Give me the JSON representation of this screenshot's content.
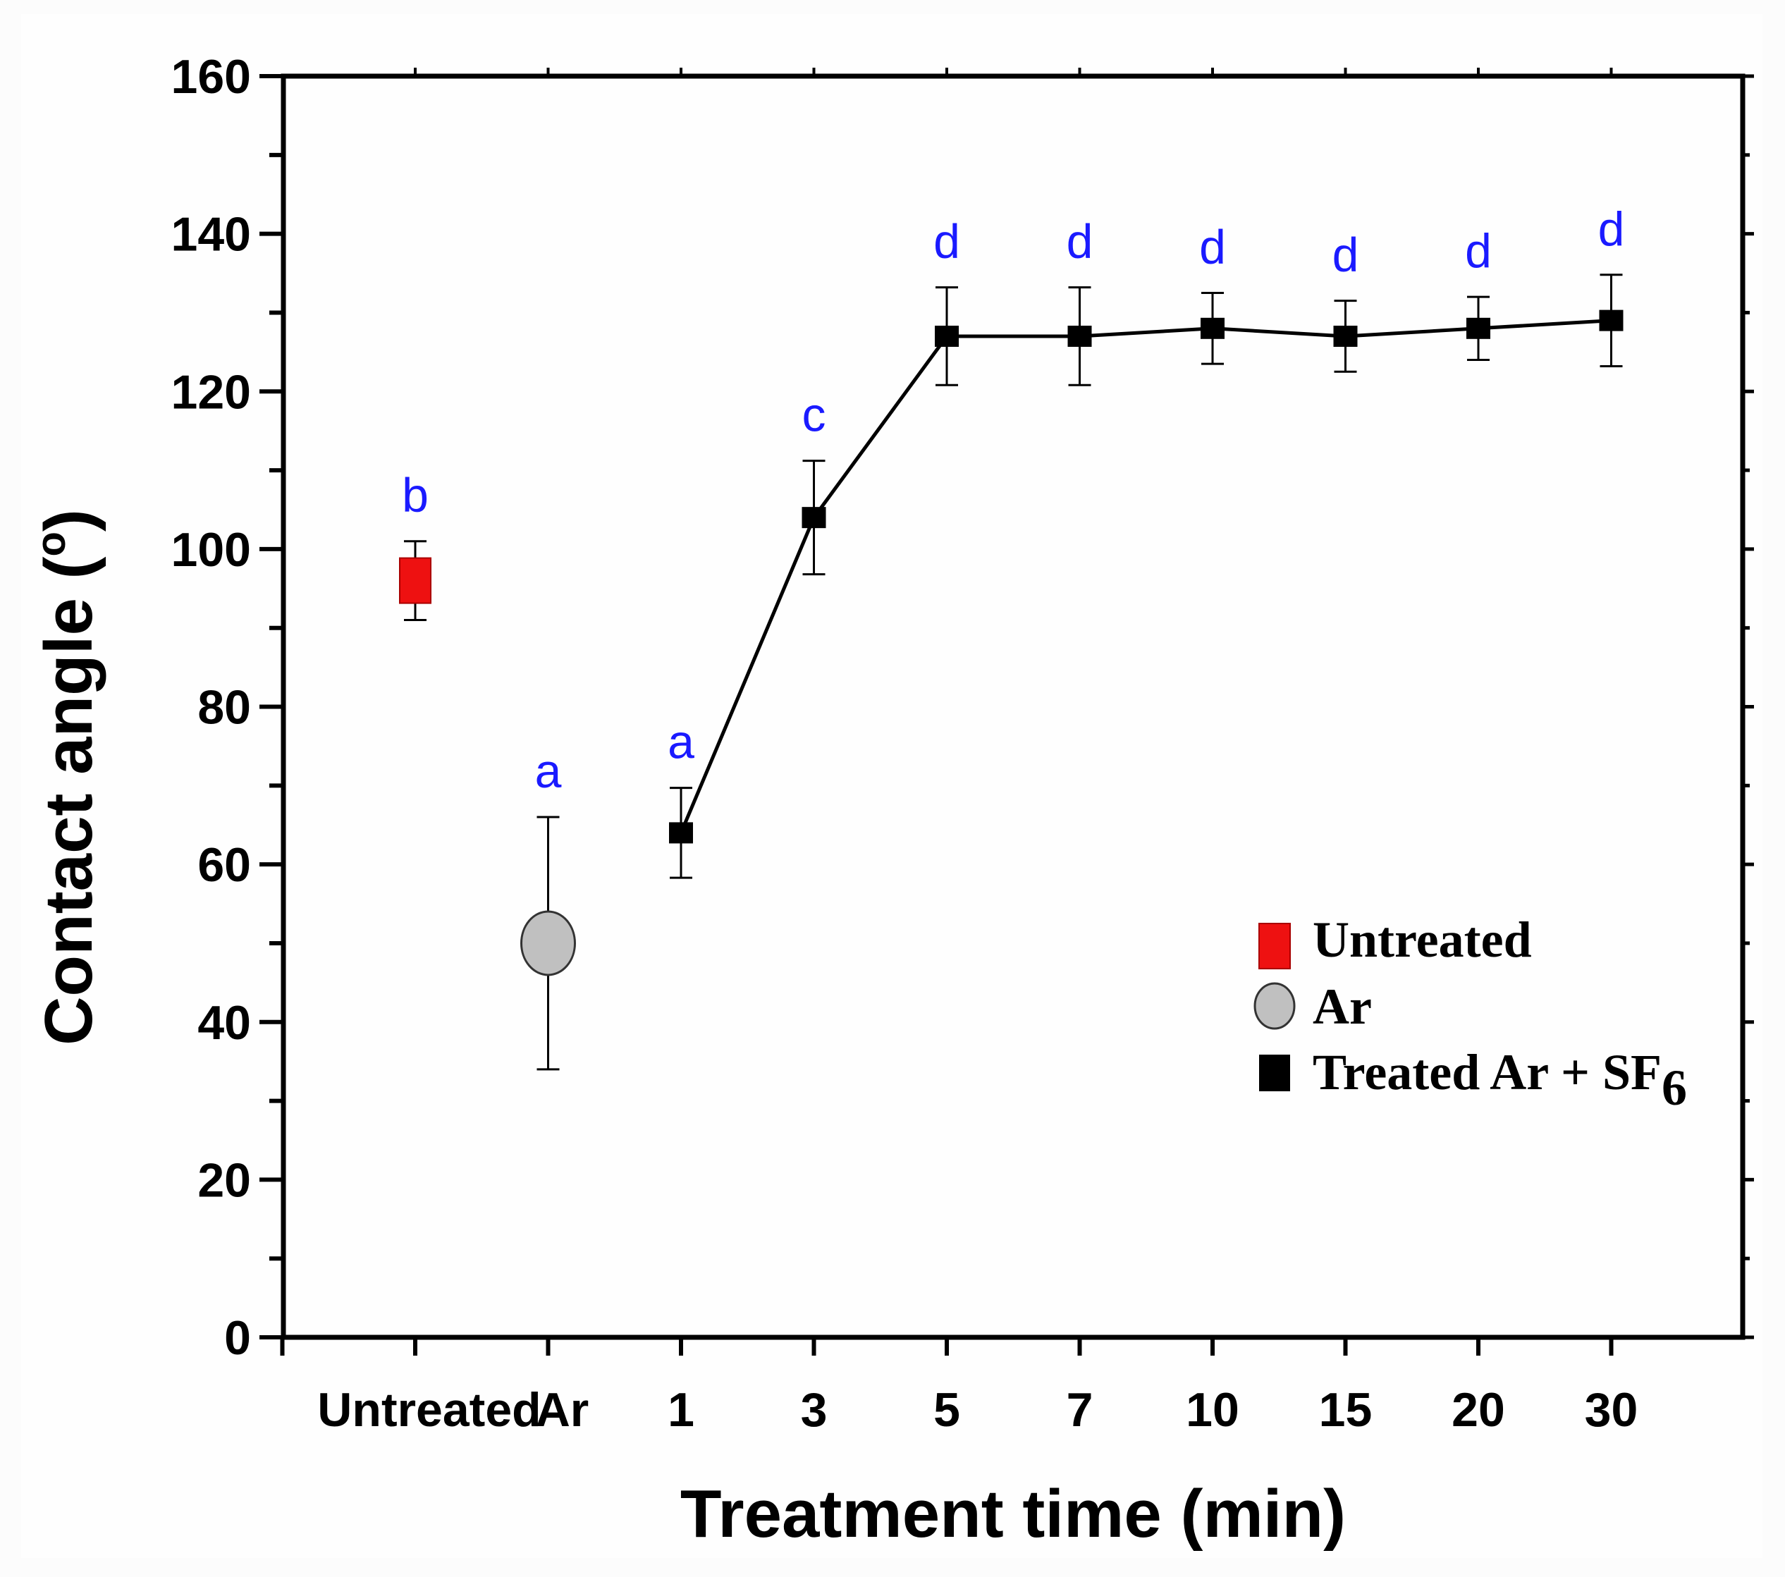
{
  "chart_data": {
    "type": "scatter",
    "title": "",
    "xlabel": "Treatment time (min)",
    "ylabel": "Contact angle (",
    "ylabel_sup": "o",
    "ylabel_close": ")",
    "ylim": [
      0,
      160
    ],
    "yticks": [
      0,
      20,
      40,
      60,
      80,
      100,
      120,
      140,
      160
    ],
    "categories": [
      "Untreated",
      "Ar",
      "1",
      "3",
      "5",
      "7",
      "10",
      "15",
      "20",
      "30"
    ],
    "series": [
      {
        "name": "Untreated",
        "marker": "square",
        "color": "#ee1111",
        "connected": false,
        "points": [
          {
            "category": "Untreated",
            "value": 96,
            "error": 5,
            "letter": "b"
          }
        ]
      },
      {
        "name": "Ar",
        "marker": "circle",
        "color": "#c0c0c0",
        "connected": false,
        "points": [
          {
            "category": "Ar",
            "value": 50,
            "error": 16,
            "letter": "a"
          }
        ]
      },
      {
        "name": "Treated Ar + SF",
        "name_subscript": "6",
        "marker": "square",
        "color": "#000000",
        "connected": true,
        "points": [
          {
            "category": "1",
            "value": 64,
            "error": 5.7,
            "letter": "a"
          },
          {
            "category": "3",
            "value": 104,
            "error": 7.2,
            "letter": "c"
          },
          {
            "category": "5",
            "value": 127,
            "error": 6.2,
            "letter": "d"
          },
          {
            "category": "7",
            "value": 127,
            "error": 6.2,
            "letter": "d"
          },
          {
            "category": "10",
            "value": 128,
            "error": 4.5,
            "letter": "d"
          },
          {
            "category": "15",
            "value": 127,
            "error": 4.5,
            "letter": "d"
          },
          {
            "category": "20",
            "value": 128,
            "error": 4,
            "letter": "d"
          },
          {
            "category": "30",
            "value": 129,
            "error": 5.8,
            "letter": "d"
          }
        ]
      }
    ],
    "letter_color": "#1a1aff",
    "legend_position": "center-right",
    "grid": false
  }
}
